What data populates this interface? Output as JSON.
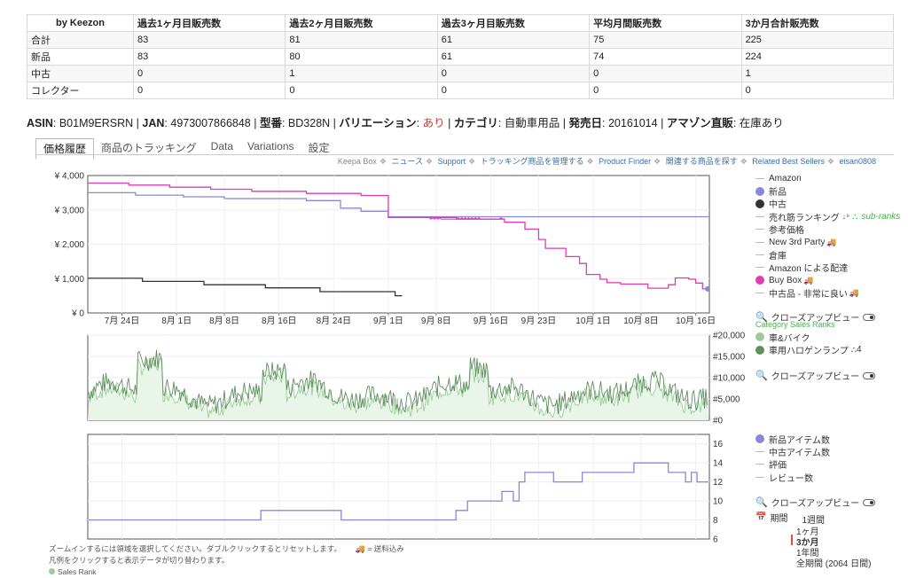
{
  "sales_table": {
    "headers": [
      "by Keezon",
      "過去1ヶ月目販売数",
      "過去2ヶ月目販売数",
      "過去3ヶ月目販売数",
      "平均月間販売数",
      "3か月合計販売数"
    ],
    "rows": [
      [
        "合計",
        "83",
        "81",
        "61",
        "75",
        "225"
      ],
      [
        "新品",
        "83",
        "80",
        "61",
        "74",
        "224"
      ],
      [
        "中古",
        "0",
        "1",
        "0",
        "0",
        "1"
      ],
      [
        "コレクター",
        "0",
        "0",
        "0",
        "0",
        "0"
      ]
    ]
  },
  "info": {
    "asin_label": "ASIN",
    "asin": "B01M9ERSRN",
    "jan_label": "JAN",
    "jan": "4973007866848",
    "model_label": "型番",
    "model": "BD328N",
    "variation_label": "バリエーション",
    "variation": "あり",
    "category_label": "カテゴリ",
    "category": "自動車用品",
    "release_label": "発売日",
    "release": "20161014",
    "amazon_label": "アマゾン直販",
    "amazon": "在庫あり"
  },
  "tabs": [
    "価格履歴",
    "商品のトラッキング",
    "Data",
    "Variations",
    "設定"
  ],
  "links": {
    "keepa_box": "Keepa Box",
    "items": [
      "ニュース",
      "Support",
      "トラッキング商品を管理する",
      "Product Finder",
      "関連する商品を探す",
      "Related Best Sellers",
      "eisan0808"
    ]
  },
  "legend_price": {
    "items": [
      {
        "label": "Amazon",
        "type": "dash",
        "color": "#999999"
      },
      {
        "label": "新品",
        "type": "dot",
        "color": "#8888d8"
      },
      {
        "label": "中古",
        "type": "dot",
        "color": "#333333"
      },
      {
        "label": "売れ筋ランキング",
        "type": "dash",
        "color": "#999999",
        "sub": "sub-ranks"
      },
      {
        "label": "参考価格",
        "type": "dash",
        "color": "#999999"
      },
      {
        "label": "New 3rd Party",
        "type": "dash",
        "color": "#999999",
        "truck": true
      },
      {
        "label": "倉庫",
        "type": "dash",
        "color": "#999999"
      },
      {
        "label": "Amazon による配達",
        "type": "dash",
        "color": "#999999"
      },
      {
        "label": "Buy Box",
        "type": "dot",
        "color": "#e23ab5",
        "truck": true
      },
      {
        "label": "中古品 - 非常に良い",
        "type": "dash",
        "color": "#999999",
        "truck": true
      }
    ],
    "closeup": "クローズアップビュー"
  },
  "legend_rank": {
    "category_label": "Category Sales Ranks",
    "items": [
      {
        "label": "車&バイク",
        "color": "#9ccc9c"
      },
      {
        "label": "車用ハロゲンランプ",
        "color": "#5f8f5f",
        "suffix": "4"
      }
    ],
    "closeup": "クローズアップビュー"
  },
  "legend_count": {
    "items": [
      {
        "label": "新品アイテム数",
        "type": "dot",
        "color": "#8888d8"
      },
      {
        "label": "中古アイテム数",
        "type": "dash",
        "color": "#999999"
      },
      {
        "label": "評価",
        "type": "dash",
        "color": "#999999"
      },
      {
        "label": "レビュー数",
        "type": "dash",
        "color": "#999999"
      }
    ],
    "closeup": "クローズアップビュー"
  },
  "period": {
    "label": "期間",
    "options": [
      "1週間",
      "1ヶ月",
      "3か月",
      "1年間",
      "全期間 (2064 日間)"
    ],
    "selected": "3か月"
  },
  "footnote": {
    "line1": "ズームインするには領域を選択してください。ダブルクリックするとリセットします。",
    "truck_note": "= 送料込み",
    "line2": "凡例をクリックすると表示データが切り替わります。",
    "line3": "Sales Rank"
  },
  "chart_data": [
    {
      "type": "line",
      "x_ticks": [
        "7月 24日",
        "8月 1日",
        "8月 8日",
        "8月 16日",
        "8月 24日",
        "9月 1日",
        "9月 8日",
        "9月 16日",
        "9月 23日",
        "10月 1日",
        "10月 8日",
        "10月 16日"
      ],
      "y_ticks": [
        "¥ 0",
        "¥ 1,000",
        "¥ 2,000",
        "¥ 3,000",
        "¥ 4,000"
      ],
      "ylim": [
        0,
        4000
      ],
      "xlim_days": [
        0,
        91
      ],
      "x_tick_days": [
        5,
        13,
        20,
        28,
        36,
        44,
        51,
        59,
        66,
        74,
        81,
        89
      ],
      "series": [
        {
          "name": "Buy Box",
          "color": "#e23ab5",
          "points": [
            [
              0,
              3780
            ],
            [
              6,
              3780
            ],
            [
              6,
              3720
            ],
            [
              12,
              3720
            ],
            [
              12,
              3660
            ],
            [
              18,
              3660
            ],
            [
              18,
              3600
            ],
            [
              24,
              3600
            ],
            [
              24,
              3540
            ],
            [
              32,
              3540
            ],
            [
              32,
              3480
            ],
            [
              40,
              3480
            ],
            [
              40,
              3420
            ],
            [
              44,
              3420
            ],
            [
              44,
              2780
            ],
            [
              54,
              2780
            ],
            [
              54,
              2730
            ],
            [
              61,
              2730
            ],
            [
              61,
              2640
            ],
            [
              64,
              2640
            ],
            [
              64,
              2440
            ],
            [
              66,
              2440
            ],
            [
              66,
              2140
            ],
            [
              67,
              2140
            ],
            [
              67,
              1880
            ],
            [
              70,
              1880
            ],
            [
              70,
              1640
            ],
            [
              72,
              1640
            ],
            [
              72,
              1440
            ],
            [
              73,
              1440
            ],
            [
              73,
              1120
            ],
            [
              75,
              1120
            ],
            [
              75,
              980
            ],
            [
              76,
              980
            ],
            [
              76,
              880
            ],
            [
              78,
              880
            ],
            [
              78,
              840
            ],
            [
              82,
              840
            ],
            [
              82,
              720
            ],
            [
              85,
              720
            ],
            [
              85,
              820
            ],
            [
              86,
              820
            ],
            [
              86,
              1020
            ],
            [
              88,
              1020
            ],
            [
              88,
              980
            ],
            [
              89,
              980
            ],
            [
              89,
              870
            ],
            [
              90,
              870
            ],
            [
              90,
              700
            ],
            [
              91,
              700
            ]
          ]
        },
        {
          "name": "新品",
          "color": "#8888d8",
          "points": [
            [
              0,
              3500
            ],
            [
              7,
              3500
            ],
            [
              7,
              3430
            ],
            [
              14,
              3430
            ],
            [
              14,
              3380
            ],
            [
              20,
              3380
            ],
            [
              20,
              3330
            ],
            [
              32,
              3330
            ],
            [
              32,
              3270
            ],
            [
              37,
              3270
            ],
            [
              37,
              3050
            ],
            [
              40,
              3050
            ],
            [
              40,
              2960
            ],
            [
              44,
              2960
            ],
            [
              44,
              2800
            ],
            [
              91,
              2800
            ]
          ]
        },
        {
          "name": "中古",
          "color": "#333333",
          "points": [
            [
              0,
              1010
            ],
            [
              8,
              1010
            ],
            [
              8,
              920
            ],
            [
              17,
              920
            ],
            [
              17,
              820
            ],
            [
              26,
              820
            ],
            [
              26,
              730
            ],
            [
              34,
              730
            ],
            [
              34,
              620
            ],
            [
              45,
              620
            ],
            [
              45,
              500
            ],
            [
              46,
              500
            ]
          ]
        }
      ]
    },
    {
      "type": "line",
      "y_ticks": [
        "#0",
        "#5,000",
        "#10,000",
        "#15,000",
        "#20,000"
      ],
      "ylim": [
        0,
        20000
      ],
      "series": [
        {
          "name": "車用ハロゲンランプ",
          "color": "#5f8f5f"
        },
        {
          "name": "車&バイク",
          "color": "#9ccc9c"
        }
      ]
    },
    {
      "type": "line",
      "y_ticks": [
        "6",
        "8",
        "10",
        "12",
        "14",
        "16"
      ],
      "ylim": [
        6,
        17
      ],
      "series": [
        {
          "name": "新品アイテム数",
          "color": "#8888d8",
          "points": [
            [
              0,
              8
            ],
            [
              30,
              8
            ],
            [
              30,
              9
            ],
            [
              44,
              9
            ],
            [
              44,
              8
            ],
            [
              64,
              8
            ],
            [
              64,
              9
            ],
            [
              66,
              9
            ],
            [
              66,
              10
            ],
            [
              72,
              10
            ],
            [
              72,
              11
            ],
            [
              74,
              11
            ],
            [
              74,
              10
            ],
            [
              75,
              10
            ],
            [
              75,
              12
            ],
            [
              76,
              12
            ],
            [
              76,
              13
            ],
            [
              81,
              13
            ],
            [
              81,
              12
            ],
            [
              86,
              12
            ],
            [
              86,
              13
            ],
            [
              95,
              13
            ],
            [
              95,
              14
            ],
            [
              101,
              14
            ],
            [
              101,
              13
            ],
            [
              104,
              13
            ],
            [
              104,
              12
            ],
            [
              105,
              12
            ],
            [
              105,
              13
            ],
            [
              106,
              13
            ],
            [
              106,
              12
            ],
            [
              108,
              12
            ]
          ]
        }
      ]
    }
  ]
}
